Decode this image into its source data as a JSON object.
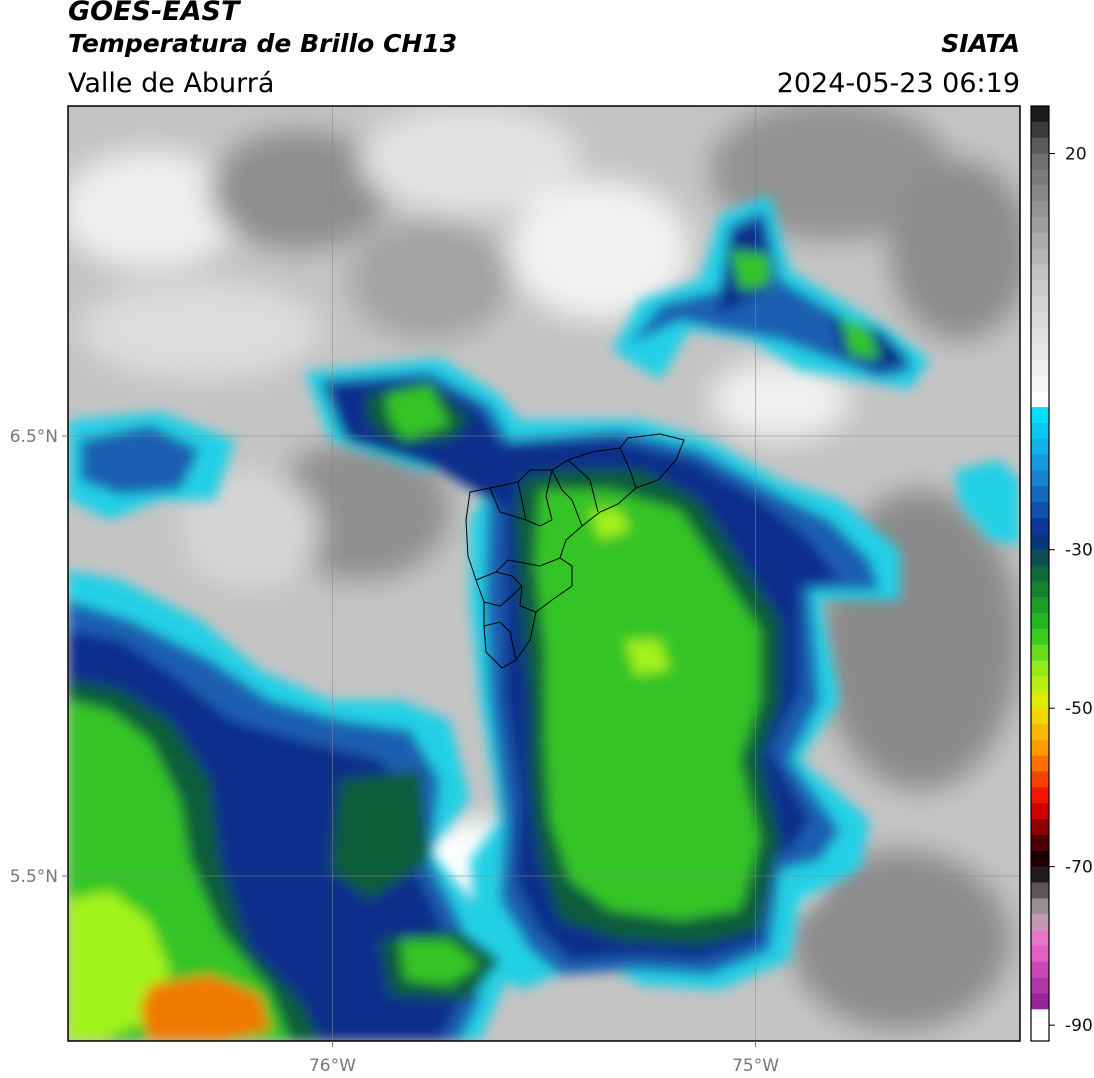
{
  "header": {
    "satellite": "GOES-EAST",
    "product": "Temperatura de Brillo CH13",
    "region": "Valle de Aburrá",
    "agency": "SIATA",
    "datetime": "2024-05-23 06:19"
  },
  "axes": {
    "lon_ticks": [
      {
        "value": -76,
        "label": "76°W"
      },
      {
        "value": -75,
        "label": "75°W"
      }
    ],
    "lat_ticks": [
      {
        "value": 6.5,
        "label": "6.5°N"
      },
      {
        "value": 5.5,
        "label": "5.5°N"
      }
    ],
    "lon_range": [
      -76.625,
      -74.375
    ],
    "lat_range": [
      5.125,
      7.25
    ],
    "grid": true
  },
  "colorbar": {
    "range": [
      -92,
      26
    ],
    "ticks": [
      {
        "value": 20,
        "label": "20"
      },
      {
        "value": -30,
        "label": "-30"
      },
      {
        "value": -50,
        "label": "-50"
      },
      {
        "value": -70,
        "label": "-70"
      },
      {
        "value": -90,
        "label": "-90"
      }
    ]
  },
  "colors": {
    "warm_gray": "#8a8a8a",
    "light_gray": "#d8d8d8",
    "cyan": "#22d0e6",
    "mid_blue": "#1a5fb0",
    "navy": "#0c2f8a",
    "dark_green": "#0f5d3a",
    "green": "#34c427",
    "lime": "#a2f21f",
    "orange": "#f07a00"
  }
}
